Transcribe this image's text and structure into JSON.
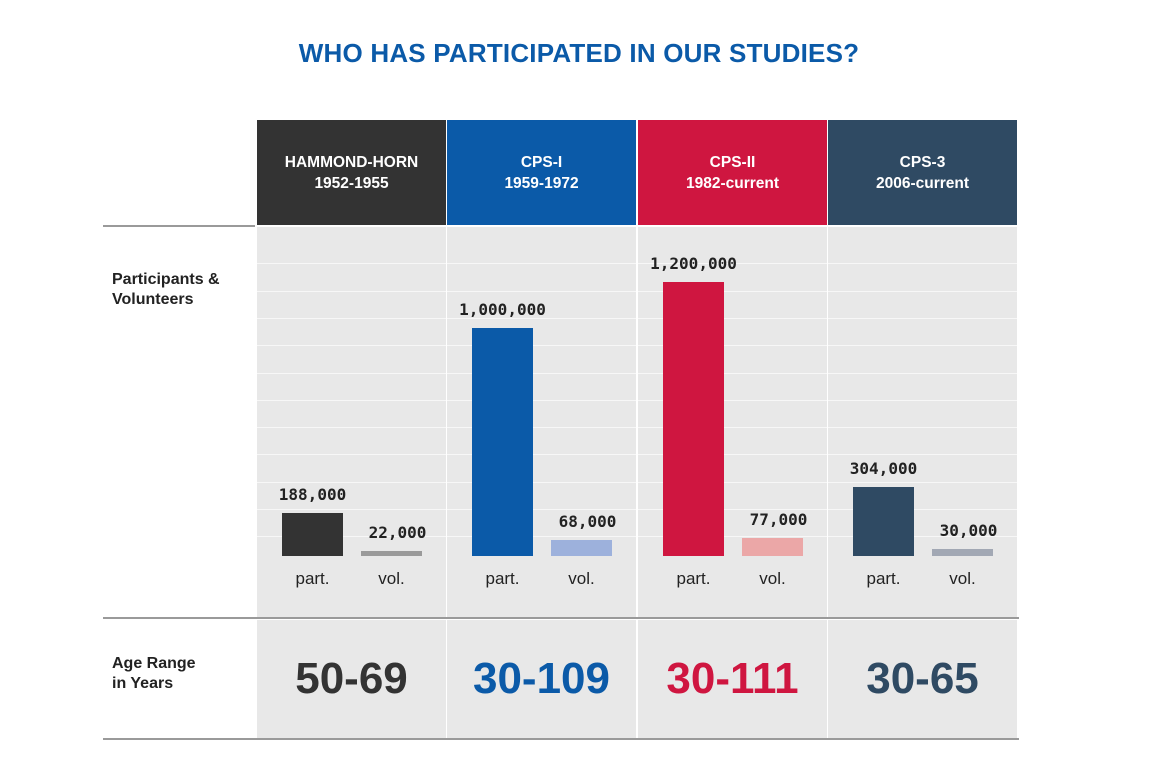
{
  "title": "WHO HAS PARTICIPATED IN OUR STUDIES?",
  "row_labels": {
    "participants": "Participants &\nVolunteers",
    "age_range": "Age Range\nin Years"
  },
  "chart_data": {
    "type": "bar",
    "title": "WHO HAS PARTICIPATED IN OUR STUDIES?",
    "categories": [
      "HAMMOND-HORN 1952-1955",
      "CPS-I 1959-1972",
      "CPS-II 1982-current",
      "CPS-3 2006-current"
    ],
    "bar_labels": [
      "part.",
      "vol."
    ],
    "ylim": [
      0,
      1300000
    ],
    "grid": true,
    "studies": [
      {
        "name": "HAMMOND-HORN",
        "years": "1952-1955",
        "participants": 188000,
        "participants_label": "188,000",
        "volunteers": 22000,
        "volunteers_label": "22,000",
        "age_range": "50-69",
        "color": "#333333",
        "vol_color": "#9a9a9a"
      },
      {
        "name": "CPS-I",
        "years": "1959-1972",
        "participants": 1000000,
        "participants_label": "1,000,000",
        "volunteers": 68000,
        "volunteers_label": "68,000",
        "age_range": "30-109",
        "color": "#0b5aa8",
        "vol_color": "#9db1dc"
      },
      {
        "name": "CPS-II",
        "years": "1982-current",
        "participants": 1200000,
        "participants_label": "1,200,000",
        "volunteers": 77000,
        "volunteers_label": "77,000",
        "age_range": "30-111",
        "color": "#cf1640",
        "vol_color": "#eba7a7"
      },
      {
        "name": "CPS-3",
        "years": "2006-current",
        "participants": 304000,
        "participants_label": "304,000",
        "volunteers": 30000,
        "volunteers_label": "30,000",
        "age_range": "30-65",
        "color": "#2f4a63",
        "vol_color": "#a2a8b4"
      }
    ]
  }
}
